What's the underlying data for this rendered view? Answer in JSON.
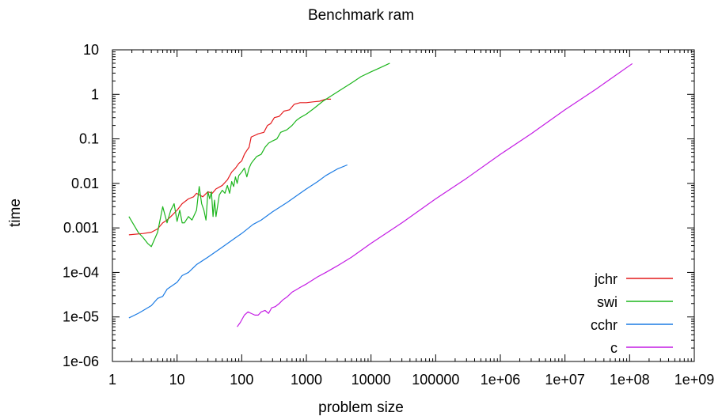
{
  "chart_data": {
    "type": "line",
    "title": "Benchmark ram",
    "xlabel": "problem size",
    "ylabel": "time",
    "xscale": "log",
    "yscale": "log",
    "xlim": [
      1,
      1000000000
    ],
    "ylim": [
      1e-06,
      10
    ],
    "xticks": [
      {
        "v": 1,
        "label": "1"
      },
      {
        "v": 10,
        "label": "10"
      },
      {
        "v": 100,
        "label": "100"
      },
      {
        "v": 1000,
        "label": "1000"
      },
      {
        "v": 10000,
        "label": "10000"
      },
      {
        "v": 100000,
        "label": "100000"
      },
      {
        "v": 1000000,
        "label": "1e+06"
      },
      {
        "v": 10000000,
        "label": "1e+07"
      },
      {
        "v": 100000000,
        "label": "1e+08"
      },
      {
        "v": 1000000000,
        "label": "1e+09"
      }
    ],
    "yticks": [
      {
        "v": 1e-06,
        "label": "1e-06"
      },
      {
        "v": 1e-05,
        "label": "1e-05"
      },
      {
        "v": 0.0001,
        "label": "1e-04"
      },
      {
        "v": 0.001,
        "label": "0.001"
      },
      {
        "v": 0.01,
        "label": "0.01"
      },
      {
        "v": 0.1,
        "label": "0.1"
      },
      {
        "v": 1,
        "label": "1"
      },
      {
        "v": 10,
        "label": "10"
      }
    ],
    "grid": false,
    "legend_position": "bottom-right",
    "series": [
      {
        "name": "jchr",
        "color": "#e41a1c",
        "points": [
          [
            1.8,
            0.0007
          ],
          [
            3,
            0.00075
          ],
          [
            4,
            0.0008
          ],
          [
            5,
            0.00095
          ],
          [
            6,
            0.0013
          ],
          [
            7,
            0.0015
          ],
          [
            8,
            0.0018
          ],
          [
            10,
            0.0025
          ],
          [
            12,
            0.0035
          ],
          [
            15,
            0.0045
          ],
          [
            18,
            0.005
          ],
          [
            20,
            0.006
          ],
          [
            25,
            0.005
          ],
          [
            30,
            0.0065
          ],
          [
            35,
            0.006
          ],
          [
            40,
            0.0075
          ],
          [
            50,
            0.009
          ],
          [
            60,
            0.012
          ],
          [
            70,
            0.018
          ],
          [
            80,
            0.022
          ],
          [
            90,
            0.028
          ],
          [
            100,
            0.032
          ],
          [
            110,
            0.045
          ],
          [
            120,
            0.055
          ],
          [
            130,
            0.065
          ],
          [
            140,
            0.11
          ],
          [
            160,
            0.12
          ],
          [
            180,
            0.13
          ],
          [
            220,
            0.14
          ],
          [
            250,
            0.2
          ],
          [
            280,
            0.22
          ],
          [
            320,
            0.3
          ],
          [
            380,
            0.32
          ],
          [
            450,
            0.42
          ],
          [
            550,
            0.45
          ],
          [
            650,
            0.6
          ],
          [
            800,
            0.65
          ],
          [
            1000,
            0.65
          ],
          [
            1300,
            0.68
          ],
          [
            1600,
            0.7
          ],
          [
            2000,
            0.78
          ],
          [
            2400,
            0.78
          ]
        ]
      },
      {
        "name": "swi",
        "color": "#1cb51c",
        "points": [
          [
            1.8,
            0.0018
          ],
          [
            2.5,
            0.0008
          ],
          [
            3,
            0.0006
          ],
          [
            3.5,
            0.00045
          ],
          [
            4,
            0.00038
          ],
          [
            5,
            0.0008
          ],
          [
            6,
            0.003
          ],
          [
            7,
            0.0013
          ],
          [
            8,
            0.0025
          ],
          [
            9,
            0.0035
          ],
          [
            10,
            0.0014
          ],
          [
            11,
            0.0025
          ],
          [
            12,
            0.0013
          ],
          [
            13,
            0.0013
          ],
          [
            15,
            0.0018
          ],
          [
            17,
            0.0015
          ],
          [
            20,
            0.0025
          ],
          [
            22,
            0.0085
          ],
          [
            24,
            0.0035
          ],
          [
            26,
            0.0025
          ],
          [
            28,
            0.0015
          ],
          [
            30,
            0.0065
          ],
          [
            32,
            0.0045
          ],
          [
            34,
            0.0065
          ],
          [
            36,
            0.0018
          ],
          [
            38,
            0.0042
          ],
          [
            40,
            0.0018
          ],
          [
            45,
            0.0055
          ],
          [
            50,
            0.007
          ],
          [
            55,
            0.006
          ],
          [
            60,
            0.009
          ],
          [
            65,
            0.006
          ],
          [
            70,
            0.011
          ],
          [
            75,
            0.0085
          ],
          [
            80,
            0.014
          ],
          [
            85,
            0.01
          ],
          [
            90,
            0.015
          ],
          [
            100,
            0.018
          ],
          [
            110,
            0.022
          ],
          [
            120,
            0.014
          ],
          [
            130,
            0.022
          ],
          [
            140,
            0.028
          ],
          [
            150,
            0.032
          ],
          [
            170,
            0.04
          ],
          [
            200,
            0.045
          ],
          [
            230,
            0.065
          ],
          [
            260,
            0.08
          ],
          [
            300,
            0.09
          ],
          [
            350,
            0.1
          ],
          [
            400,
            0.14
          ],
          [
            500,
            0.16
          ],
          [
            600,
            0.2
          ],
          [
            700,
            0.26
          ],
          [
            800,
            0.3
          ],
          [
            1000,
            0.36
          ],
          [
            1300,
            0.48
          ],
          [
            1800,
            0.7
          ],
          [
            2500,
            0.95
          ],
          [
            3500,
            1.3
          ],
          [
            5000,
            1.8
          ],
          [
            7000,
            2.5
          ],
          [
            10000,
            3.2
          ],
          [
            14000,
            4.0
          ],
          [
            19500,
            5.0
          ]
        ]
      },
      {
        "name": "cchr",
        "color": "#1c7ce4",
        "points": [
          [
            1.8,
            9.5e-06
          ],
          [
            2.5,
            1.2e-05
          ],
          [
            3,
            1.4e-05
          ],
          [
            4,
            1.8e-05
          ],
          [
            5,
            2.6e-05
          ],
          [
            6,
            2.9e-05
          ],
          [
            7,
            4.2e-05
          ],
          [
            8,
            4.8e-05
          ],
          [
            10,
            6e-05
          ],
          [
            12,
            8.5e-05
          ],
          [
            15,
            0.0001
          ],
          [
            20,
            0.00015
          ],
          [
            30,
            0.00022
          ],
          [
            50,
            0.00037
          ],
          [
            80,
            0.0006
          ],
          [
            100,
            0.00075
          ],
          [
            150,
            0.0012
          ],
          [
            200,
            0.0015
          ],
          [
            300,
            0.0023
          ],
          [
            500,
            0.0037
          ],
          [
            800,
            0.006
          ],
          [
            1000,
            0.0075
          ],
          [
            1500,
            0.011
          ],
          [
            2000,
            0.015
          ],
          [
            3000,
            0.021
          ],
          [
            4300,
            0.026
          ]
        ]
      },
      {
        "name": "c",
        "color": "#c41ce4",
        "points": [
          [
            85,
            6e-06
          ],
          [
            95,
            7.5e-06
          ],
          [
            110,
            1.1e-05
          ],
          [
            125,
            1.3e-05
          ],
          [
            140,
            1.2e-05
          ],
          [
            160,
            1.1e-05
          ],
          [
            180,
            1.1e-05
          ],
          [
            200,
            1.3e-05
          ],
          [
            230,
            1.4e-05
          ],
          [
            260,
            1.2e-05
          ],
          [
            290,
            1.6e-05
          ],
          [
            330,
            1.7e-05
          ],
          [
            380,
            2e-05
          ],
          [
            430,
            2.4e-05
          ],
          [
            500,
            2.8e-05
          ],
          [
            600,
            3.6e-05
          ],
          [
            700,
            4.1e-05
          ],
          [
            800,
            4.6e-05
          ],
          [
            1000,
            5.5e-05
          ],
          [
            1500,
            8e-05
          ],
          [
            2000,
            0.0001
          ],
          [
            3000,
            0.00014
          ],
          [
            5000,
            0.00022
          ],
          [
            10000,
            0.00045
          ],
          [
            30000,
            0.0013
          ],
          [
            100000,
            0.0045
          ],
          [
            300000,
            0.013
          ],
          [
            1000000,
            0.045
          ],
          [
            3000000,
            0.13
          ],
          [
            10000000,
            0.45
          ],
          [
            30000000,
            1.3
          ],
          [
            110000000,
            4.9
          ]
        ]
      }
    ]
  }
}
